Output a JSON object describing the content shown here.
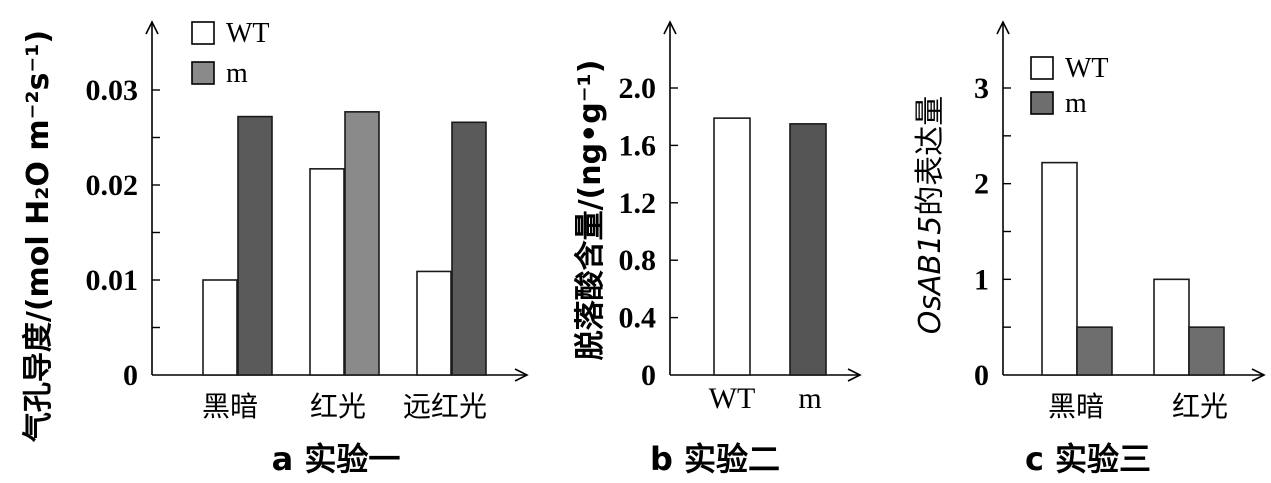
{
  "colors": {
    "wt_fill": "#ffffff",
    "m_fill_a": "#5a5a5a",
    "m_fill_a_light": "#8a8a8a",
    "m_fill_b": "#555555",
    "m_fill_c": "#6e6e6e"
  },
  "chart_data": [
    {
      "type": "bar",
      "caption": "a 实验一",
      "ylabel": "气孔导度/(mol H₂O m⁻²s⁻¹)",
      "ylim": [
        0,
        0.03
      ],
      "yticks": [
        "0",
        "0.01",
        "0.02",
        "0.03"
      ],
      "categories": [
        "黑暗",
        "红光",
        "远红光"
      ],
      "legend": [
        "WT",
        "m"
      ],
      "series": [
        {
          "name": "WT",
          "values": [
            0.01,
            0.0217,
            0.0109
          ]
        },
        {
          "name": "m",
          "values": [
            0.0272,
            0.0277,
            0.0266
          ]
        }
      ]
    },
    {
      "type": "bar",
      "caption": "b 实验二",
      "ylabel": "脱落酸含量/(ng•g⁻¹)",
      "ylim": [
        0,
        2.0
      ],
      "yticks": [
        "0",
        "0.4",
        "0.8",
        "1.2",
        "1.6",
        "2.0"
      ],
      "categories": [
        "WT",
        "m"
      ],
      "values": [
        1.79,
        1.75
      ]
    },
    {
      "type": "bar",
      "caption": "c 实验三",
      "ylabel": "OsAB15的表达量",
      "ylim": [
        0,
        3
      ],
      "yticks": [
        "0",
        "1",
        "2",
        "3"
      ],
      "categories": [
        "黑暗",
        "红光"
      ],
      "legend": [
        "WT",
        "m"
      ],
      "series": [
        {
          "name": "WT",
          "values": [
            2.22,
            1.0
          ]
        },
        {
          "name": "m",
          "values": [
            0.5,
            0.5
          ]
        }
      ]
    }
  ]
}
